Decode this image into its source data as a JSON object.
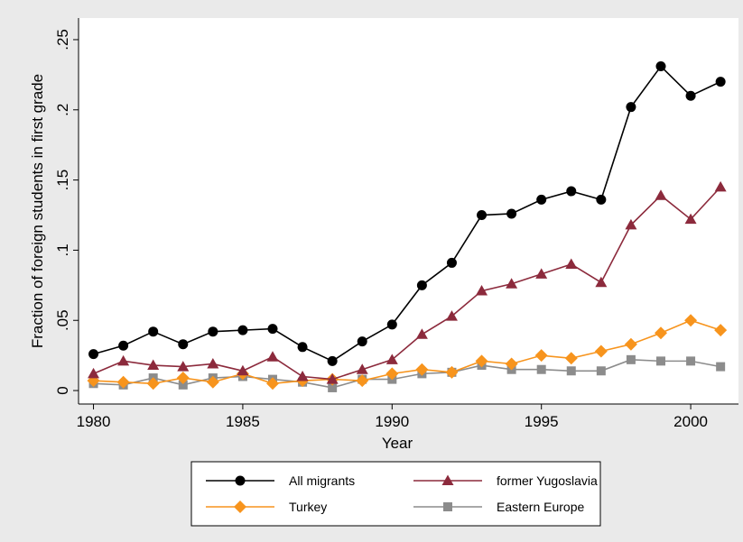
{
  "chart_data": {
    "type": "line",
    "x_label": "Year",
    "y_label": "Fraction of foreign students in first grade",
    "x": [
      1980,
      1981,
      1982,
      1983,
      1984,
      1985,
      1986,
      1987,
      1988,
      1989,
      1990,
      1991,
      1992,
      1993,
      1994,
      1995,
      1996,
      1997,
      1998,
      1999,
      2000,
      2001
    ],
    "series": [
      {
        "name": "All migrants",
        "color": "#000000",
        "marker": "circle",
        "values": [
          0.026,
          0.032,
          0.042,
          0.033,
          0.042,
          0.043,
          0.044,
          0.031,
          0.021,
          0.035,
          0.047,
          0.075,
          0.091,
          0.125,
          0.126,
          0.136,
          0.142,
          0.136,
          0.202,
          0.231,
          0.21,
          0.22
        ]
      },
      {
        "name": "former Yugoslavia",
        "color": "#8c2a3c",
        "marker": "triangle",
        "values": [
          0.012,
          0.021,
          0.018,
          0.017,
          0.019,
          0.014,
          0.024,
          0.01,
          0.008,
          0.015,
          0.022,
          0.04,
          0.053,
          0.071,
          0.076,
          0.083,
          0.09,
          0.077,
          0.118,
          0.139,
          0.122,
          0.145
        ]
      },
      {
        "name": "Turkey",
        "color": "#f7941d",
        "marker": "diamond",
        "values": [
          0.007,
          0.006,
          0.005,
          0.009,
          0.006,
          0.012,
          0.005,
          0.007,
          0.008,
          0.007,
          0.012,
          0.015,
          0.013,
          0.021,
          0.019,
          0.025,
          0.023,
          0.028,
          0.033,
          0.041,
          0.05,
          0.043
        ]
      },
      {
        "name": "Eastern Europe",
        "color": "#8c8c8c",
        "marker": "square",
        "values": [
          0.005,
          0.004,
          0.009,
          0.004,
          0.009,
          0.01,
          0.008,
          0.006,
          0.002,
          0.008,
          0.008,
          0.012,
          0.013,
          0.018,
          0.015,
          0.015,
          0.014,
          0.014,
          0.022,
          0.021,
          0.021,
          0.017
        ]
      }
    ],
    "xlim": [
      1979.5,
      2001.6
    ],
    "xticks": [
      1980,
      1985,
      1990,
      1995,
      2000
    ],
    "ylim": [
      -0.0096,
      0.2654
    ],
    "yticks": [
      0,
      {
        "value": 0.05,
        "label": ".05"
      },
      {
        "value": 0.1,
        "label": ".1"
      },
      {
        "value": 0.15,
        "label": ".15"
      },
      {
        "value": 0.2,
        "label": ".2"
      },
      {
        "value": 0.25,
        "label": ".25"
      }
    ],
    "grid": false,
    "legend_position": "bottom"
  }
}
